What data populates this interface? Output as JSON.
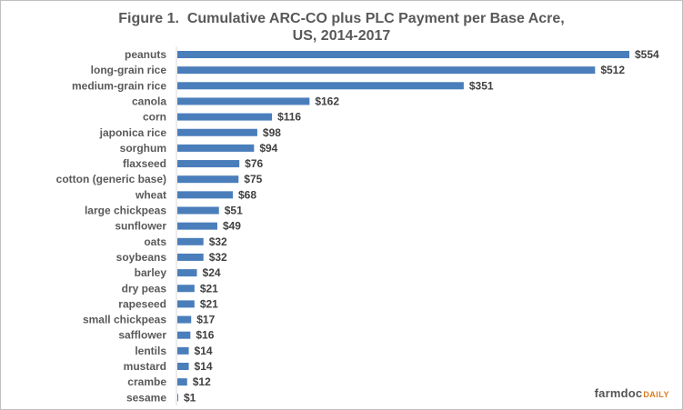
{
  "chart_data": {
    "type": "bar",
    "orientation": "horizontal",
    "title_line1": "Figure 1.  Cumulative ARC-CO plus PLC Payment per Base Acre,",
    "title_line2": "US, 2014-2017",
    "xlabel": "",
    "ylabel": "",
    "value_prefix": "$",
    "xlim": [
      0,
      554
    ],
    "grid": false,
    "legend": false,
    "bar_color": "#4a7ebb",
    "categories": [
      "peanuts",
      "long-grain rice",
      "medium-grain rice",
      "canola",
      "corn",
      "japonica rice",
      "sorghum",
      "flaxseed",
      "cotton (generic base)",
      "wheat",
      "large chickpeas",
      "sunflower",
      "oats",
      "soybeans",
      "barley",
      "dry peas",
      "rapeseed",
      "small chickpeas",
      "safflower",
      "lentils",
      "mustard",
      "crambe",
      "sesame"
    ],
    "values": [
      554,
      512,
      351,
      162,
      116,
      98,
      94,
      76,
      75,
      68,
      51,
      49,
      32,
      32,
      24,
      21,
      21,
      17,
      16,
      14,
      14,
      12,
      1
    ],
    "value_labels": [
      "$554",
      "$512",
      "$351",
      "$162",
      "$116",
      "$98",
      "$94",
      "$76",
      "$75",
      "$68",
      "$51",
      "$49",
      "$32",
      "$32",
      "$24",
      "$21",
      "$21",
      "$17",
      "$16",
      "$14",
      "$14",
      "$12",
      "$1"
    ]
  },
  "branding": {
    "logo_main": "farmdoc",
    "logo_suffix": "DAILY"
  }
}
